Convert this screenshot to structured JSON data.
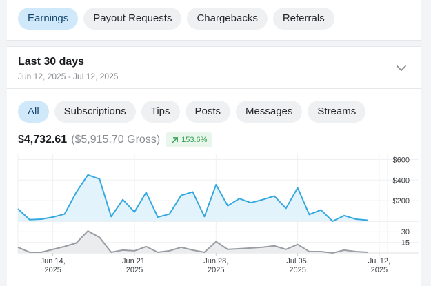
{
  "top_tabs": [
    "Earnings",
    "Payout Requests",
    "Chargebacks",
    "Referrals"
  ],
  "active_top_tab": 0,
  "period": {
    "title": "Last 30 days",
    "range": "Jun 12, 2025 - Jul 12, 2025",
    "chevron_icon": "chevron-down-icon"
  },
  "filter_tabs": [
    "All",
    "Subscriptions",
    "Tips",
    "Posts",
    "Messages",
    "Streams"
  ],
  "active_filter_tab": 0,
  "summary": {
    "net": "$4,732.61",
    "gross": "($5,915.70 Gross)",
    "change": "153.6%",
    "change_icon": "trend-up-arrow-icon"
  },
  "colors": {
    "accent": "#35a8e0",
    "area_fill": "#e3f3fc",
    "count_line": "#9a9da3",
    "count_fill": "#ebecee",
    "positive": "#2f9e4f"
  },
  "chart_data": [
    {
      "type": "area",
      "title": "",
      "x": [
        "2025-06-11",
        "2025-06-12",
        "2025-06-13",
        "2025-06-14",
        "2025-06-15",
        "2025-06-16",
        "2025-06-17",
        "2025-06-18",
        "2025-06-19",
        "2025-06-20",
        "2025-06-21",
        "2025-06-22",
        "2025-06-23",
        "2025-06-24",
        "2025-06-25",
        "2025-06-26",
        "2025-06-27",
        "2025-06-28",
        "2025-06-29",
        "2025-06-30",
        "2025-07-01",
        "2025-07-02",
        "2025-07-03",
        "2025-07-04",
        "2025-07-05",
        "2025-07-06",
        "2025-07-07",
        "2025-07-08",
        "2025-07-09",
        "2025-07-10",
        "2025-07-11"
      ],
      "series": [
        {
          "values": [
            120,
            15,
            20,
            40,
            70,
            280,
            450,
            410,
            45,
            210,
            90,
            280,
            40,
            70,
            250,
            285,
            45,
            355,
            150,
            220,
            180,
            210,
            245,
            125,
            325,
            65,
            110,
            0,
            55,
            20,
            10
          ]
        }
      ],
      "ylim": [
        0,
        650
      ],
      "y_ticks": [
        {
          "value": 200,
          "label": "$200"
        },
        {
          "value": 400,
          "label": "$400"
        },
        {
          "value": 600,
          "label": "$600"
        }
      ],
      "grid": true
    },
    {
      "type": "area",
      "title": "",
      "x": [
        "2025-06-11",
        "2025-06-12",
        "2025-06-13",
        "2025-06-14",
        "2025-06-15",
        "2025-06-16",
        "2025-06-17",
        "2025-06-18",
        "2025-06-19",
        "2025-06-20",
        "2025-06-21",
        "2025-06-22",
        "2025-06-23",
        "2025-06-24",
        "2025-06-25",
        "2025-06-26",
        "2025-06-27",
        "2025-06-28",
        "2025-06-29",
        "2025-06-30",
        "2025-07-01",
        "2025-07-02",
        "2025-07-03",
        "2025-07-04",
        "2025-07-05",
        "2025-07-06",
        "2025-07-07",
        "2025-07-08",
        "2025-07-09",
        "2025-07-10",
        "2025-07-11"
      ],
      "series": [
        {
          "values": [
            8,
            1,
            1,
            5,
            9,
            14,
            31,
            22,
            1,
            4,
            3,
            9,
            1,
            3,
            8,
            4,
            1,
            16,
            5,
            6,
            7,
            8,
            10,
            5,
            12,
            2,
            2,
            0,
            4,
            2,
            1
          ]
        }
      ],
      "ylim": [
        0,
        38
      ],
      "y_ticks": [
        {
          "value": 15,
          "label": "15"
        },
        {
          "value": 30,
          "label": "30"
        }
      ],
      "x_ticks": [
        {
          "date": "2025-06-14",
          "line1": "Jun 14,",
          "line2": "2025"
        },
        {
          "date": "2025-06-21",
          "line1": "Jun 21,",
          "line2": "2025"
        },
        {
          "date": "2025-06-28",
          "line1": "Jun 28,",
          "line2": "2025"
        },
        {
          "date": "2025-07-05",
          "line1": "Jul 05,",
          "line2": "2025"
        },
        {
          "date": "2025-07-12",
          "line1": "Jul 12,",
          "line2": "2025"
        }
      ],
      "grid": true
    }
  ]
}
